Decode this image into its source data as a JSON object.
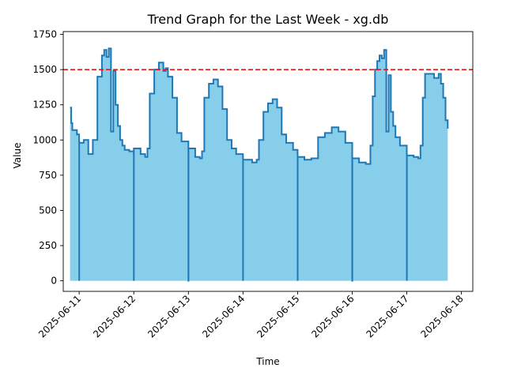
{
  "chart_data": {
    "type": "area",
    "title": "Trend Graph for the Last Week - xg.db",
    "xlabel": "Time",
    "ylabel": "Value",
    "xlim": [
      "2025-06-10T17:00",
      "2025-06-18T05:00"
    ],
    "ylim": [
      -75,
      1770
    ],
    "x_ticks": [
      "2025-06-11",
      "2025-06-12",
      "2025-06-13",
      "2025-06-14",
      "2025-06-15",
      "2025-06-16",
      "2025-06-17",
      "2025-06-18"
    ],
    "y_ticks": [
      0,
      250,
      500,
      750,
      1000,
      1250,
      1500,
      1750
    ],
    "threshold": {
      "value": 1500,
      "style": "dashed",
      "color": "#e8161b"
    },
    "fill_color": "#87ceeb",
    "line_color": "#1f77b4",
    "grid": false,
    "series": [
      {
        "x": [
          "2025-06-10T20:00",
          "2025-06-10T20:30",
          "2025-06-10T21:00",
          "2025-06-10T23:00",
          "2025-06-11T00:00",
          "2025-06-11T00:01",
          "2025-06-11T00:02",
          "2025-06-11T02:00",
          "2025-06-11T04:00",
          "2025-06-11T06:00",
          "2025-06-11T08:00",
          "2025-06-11T10:00",
          "2025-06-11T11:00",
          "2025-06-11T12:00",
          "2025-06-11T13:00",
          "2025-06-11T14:00",
          "2025-06-11T15:00",
          "2025-06-11T16:00",
          "2025-06-11T17:00",
          "2025-06-11T18:00",
          "2025-06-11T19:00",
          "2025-06-11T20:00",
          "2025-06-11T22:00",
          "2025-06-12T00:00",
          "2025-06-12T00:01",
          "2025-06-12T00:02",
          "2025-06-12T03:00",
          "2025-06-12T05:00",
          "2025-06-12T06:00",
          "2025-06-12T07:00",
          "2025-06-12T09:00",
          "2025-06-12T11:00",
          "2025-06-12T13:00",
          "2025-06-12T14:00",
          "2025-06-12T15:00",
          "2025-06-12T17:00",
          "2025-06-12T19:00",
          "2025-06-12T21:00",
          "2025-06-13T00:00",
          "2025-06-13T00:01",
          "2025-06-13T00:02",
          "2025-06-13T03:00",
          "2025-06-13T05:00",
          "2025-06-13T06:00",
          "2025-06-13T07:00",
          "2025-06-13T09:00",
          "2025-06-13T11:00",
          "2025-06-13T13:00",
          "2025-06-13T15:00",
          "2025-06-13T17:00",
          "2025-06-13T19:00",
          "2025-06-13T21:00",
          "2025-06-14T00:00",
          "2025-06-14T00:01",
          "2025-06-14T00:02",
          "2025-06-14T04:00",
          "2025-06-14T06:00",
          "2025-06-14T07:00",
          "2025-06-14T09:00",
          "2025-06-14T11:00",
          "2025-06-14T13:00",
          "2025-06-14T15:00",
          "2025-06-14T17:00",
          "2025-06-14T19:00",
          "2025-06-14T22:00",
          "2025-06-15T00:00",
          "2025-06-15T00:01",
          "2025-06-15T00:02",
          "2025-06-15T03:00",
          "2025-06-15T06:00",
          "2025-06-15T09:00",
          "2025-06-15T12:00",
          "2025-06-15T15:00",
          "2025-06-15T18:00",
          "2025-06-15T21:00",
          "2025-06-16T00:00",
          "2025-06-16T00:01",
          "2025-06-16T00:02",
          "2025-06-16T03:00",
          "2025-06-16T06:00",
          "2025-06-16T08:00",
          "2025-06-16T09:00",
          "2025-06-16T10:00",
          "2025-06-16T11:00",
          "2025-06-16T12:00",
          "2025-06-16T13:00",
          "2025-06-16T14:00",
          "2025-06-16T15:00",
          "2025-06-16T16:00",
          "2025-06-16T17:00",
          "2025-06-16T18:00",
          "2025-06-16T19:00",
          "2025-06-16T21:00",
          "2025-06-17T00:00",
          "2025-06-17T00:01",
          "2025-06-17T00:02",
          "2025-06-17T03:00",
          "2025-06-17T05:00",
          "2025-06-17T06:00",
          "2025-06-17T07:00",
          "2025-06-17T08:00",
          "2025-06-17T10:00",
          "2025-06-17T12:00",
          "2025-06-17T14:00",
          "2025-06-17T15:00",
          "2025-06-17T16:00",
          "2025-06-17T17:00",
          "2025-06-17T18:00"
        ],
        "y": [
          1230,
          1120,
          1070,
          1040,
          990,
          0,
          980,
          1000,
          900,
          1000,
          1450,
          1600,
          1640,
          1590,
          1650,
          1060,
          1490,
          1250,
          1100,
          1000,
          960,
          930,
          920,
          900,
          0,
          940,
          900,
          880,
          940,
          1330,
          1500,
          1550,
          1490,
          1510,
          1450,
          1300,
          1050,
          990,
          930,
          0,
          940,
          880,
          870,
          920,
          1300,
          1400,
          1430,
          1380,
          1220,
          1000,
          940,
          900,
          880,
          0,
          860,
          840,
          860,
          1000,
          1200,
          1260,
          1290,
          1230,
          1040,
          980,
          930,
          900,
          0,
          880,
          860,
          870,
          1020,
          1050,
          1090,
          1060,
          980,
          900,
          0,
          870,
          840,
          830,
          960,
          1310,
          1500,
          1560,
          1600,
          1580,
          1640,
          1060,
          1460,
          1200,
          1100,
          1020,
          960,
          900,
          0,
          890,
          880,
          870,
          960,
          1300,
          1470,
          1470,
          1440,
          1470,
          1400,
          1300,
          1140,
          1080
        ]
      }
    ]
  }
}
